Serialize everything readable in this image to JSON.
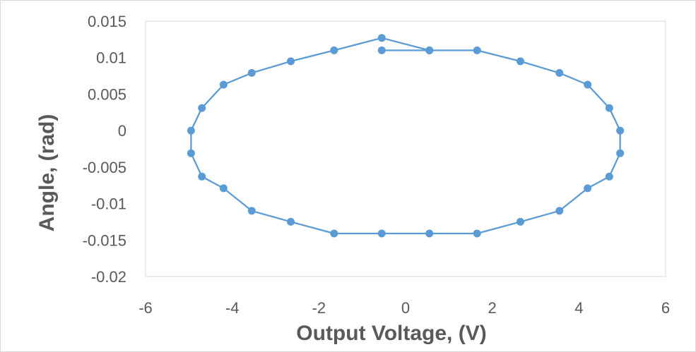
{
  "chart_data": {
    "type": "scatter",
    "xlabel": "Output Voltage, (V)",
    "ylabel": "Angle, (rad)",
    "xlim": [
      -6,
      6
    ],
    "ylim": [
      -0.02,
      0.015
    ],
    "x_ticks": [
      "-6",
      "-4",
      "-2",
      "0",
      "2",
      "4",
      "6"
    ],
    "y_ticks": [
      "0.015",
      "0.01",
      "0.005",
      "0",
      "-0.005",
      "-0.01",
      "-0.015",
      "-0.02"
    ],
    "grid": false,
    "legend": "none",
    "series": [
      {
        "color": "#5b9bd5",
        "mode": "lines+markers",
        "x": [
          0.55,
          1.65,
          2.65,
          3.55,
          4.2,
          4.7,
          4.95,
          4.95,
          4.7,
          4.2,
          3.55,
          2.65,
          1.65,
          0.55,
          -0.55,
          -1.65,
          -2.65,
          -3.55,
          -4.2,
          -4.7,
          -4.95,
          -4.95,
          -4.7,
          -4.2,
          -3.55,
          -2.65,
          -1.65,
          -0.55,
          0.55
        ],
        "y": [
          0.011,
          0.011,
          0.0095,
          0.0079,
          0.0063,
          0.0031,
          0.0,
          -0.0031,
          -0.0063,
          -0.0079,
          -0.011,
          -0.0125,
          -0.0141,
          -0.0141,
          -0.0141,
          -0.0141,
          -0.0125,
          -0.011,
          -0.0079,
          -0.0063,
          -0.0031,
          0.0,
          0.0031,
          0.0063,
          0.0079,
          0.0095,
          0.011,
          0.0127,
          0.011
        ]
      },
      {
        "color": "#5b9bd5",
        "mode": "lines+markers",
        "x": [
          -0.55,
          0.55
        ],
        "y": [
          0.011,
          0.011
        ]
      }
    ]
  }
}
